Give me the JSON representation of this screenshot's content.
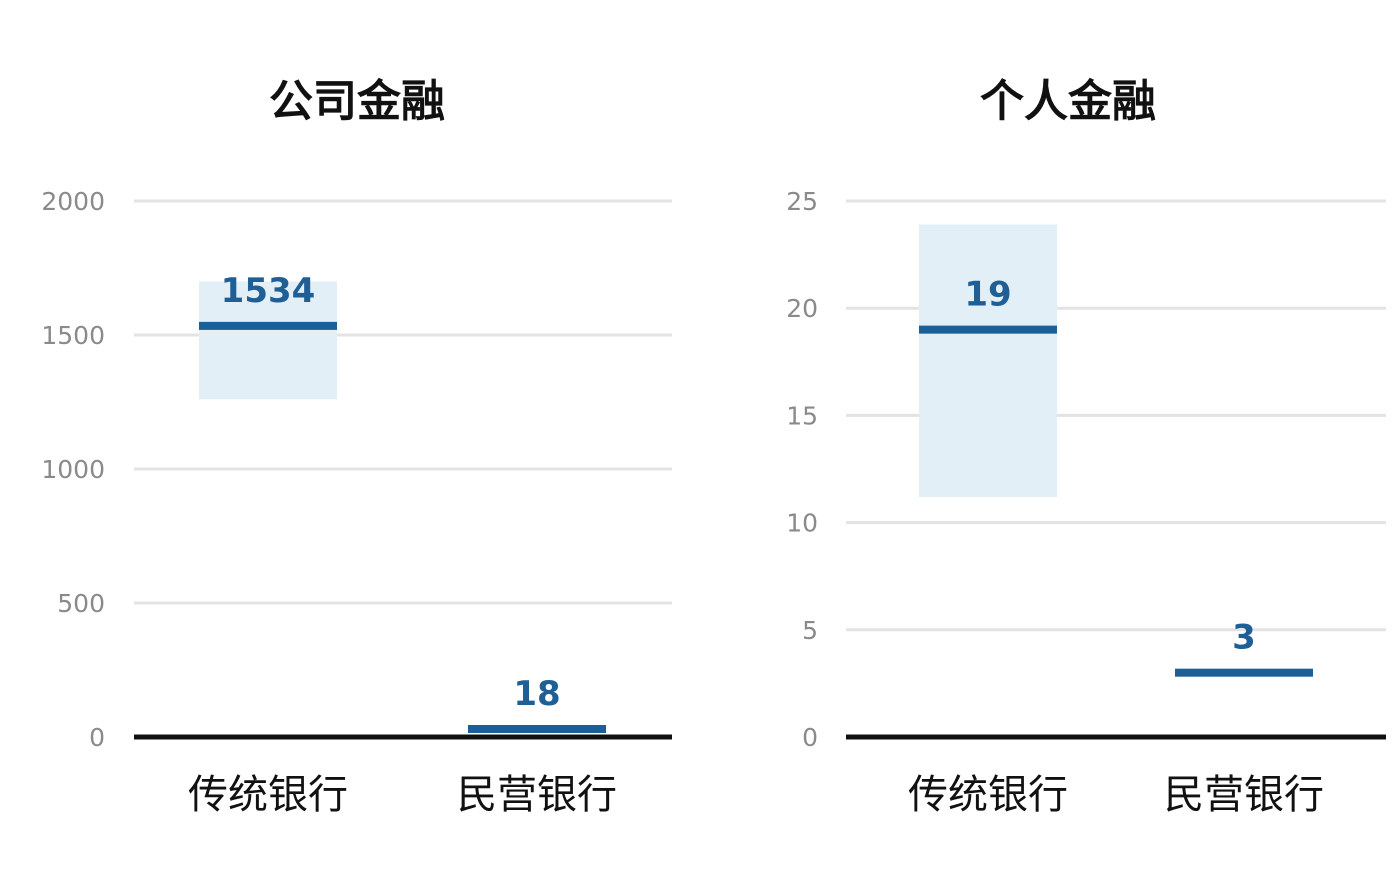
{
  "colors": {
    "range_fill": "#e3eff6",
    "marker": "#1a5f97",
    "label": "#1f5f96",
    "grid": "#e3e3e3",
    "baseline": "#111111",
    "tick": "#8a8a8a"
  },
  "chart_data": [
    {
      "type": "bar",
      "title": "公司金融",
      "categories": [
        "传统银行",
        "民营银行"
      ],
      "values": [
        1534,
        18
      ],
      "ranges": [
        [
          1260,
          1700
        ],
        null
      ],
      "y_ticks": [
        0,
        500,
        1000,
        1500,
        2000
      ],
      "ylim": [
        0,
        2000
      ],
      "grid": true,
      "xlabel": "",
      "ylabel": ""
    },
    {
      "type": "bar",
      "title": "个人金融",
      "categories": [
        "传统银行",
        "民营银行"
      ],
      "values": [
        19,
        3
      ],
      "ranges": [
        [
          11.2,
          23.9
        ],
        null
      ],
      "y_ticks": [
        0,
        5,
        10,
        15,
        20,
        25
      ],
      "ylim": [
        0,
        25
      ],
      "grid": true,
      "xlabel": "",
      "ylabel": ""
    }
  ]
}
